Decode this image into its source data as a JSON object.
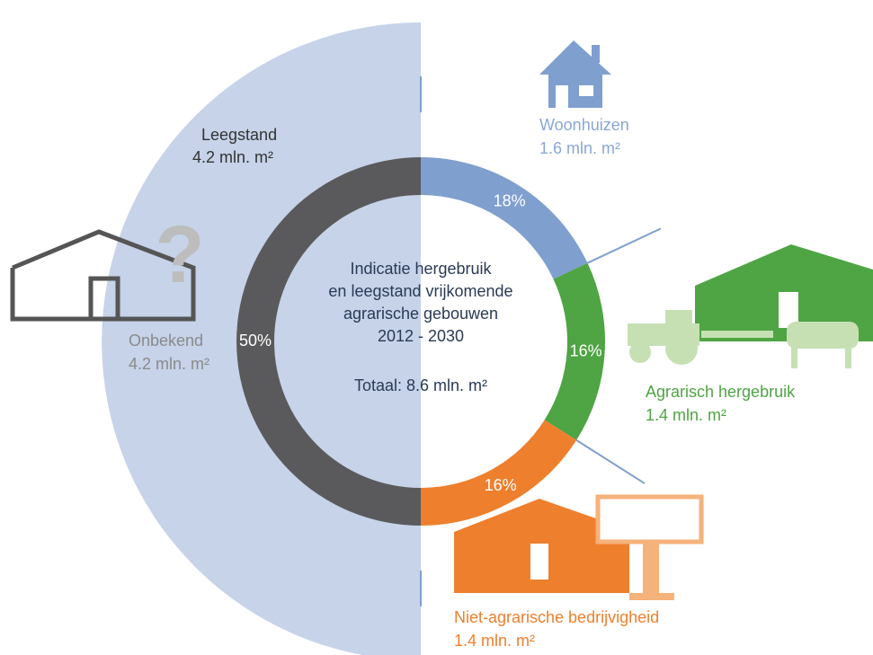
{
  "chart_data": {
    "type": "donut",
    "title": [
      "Indicatie hergebruik",
      "en leegstand vrijkomende",
      "agrarische gebouwen",
      "2012 - 2030"
    ],
    "total": "Totaal: 8.6 mln. m²",
    "categories": [
      "Woonhuizen",
      "Agrarisch hergebruik",
      "Niet-agrarische bedrijvigheid",
      "Onbekend"
    ],
    "values": [
      18,
      16,
      16,
      50
    ],
    "value_labels": [
      "18%",
      "16%",
      "16%",
      "50%"
    ],
    "areas": [
      "1.6 mln. m²",
      "1.4 mln. m²",
      "1.4 mln. m²",
      "4.2 mln. m²"
    ],
    "colors": [
      "#7f9fcf",
      "#4fa444",
      "#ee7f2d",
      "#5a5a5c"
    ],
    "outer": {
      "name": "Leegstand",
      "area": "4.2 mln. m²",
      "color": "#c6d3e9"
    }
  }
}
